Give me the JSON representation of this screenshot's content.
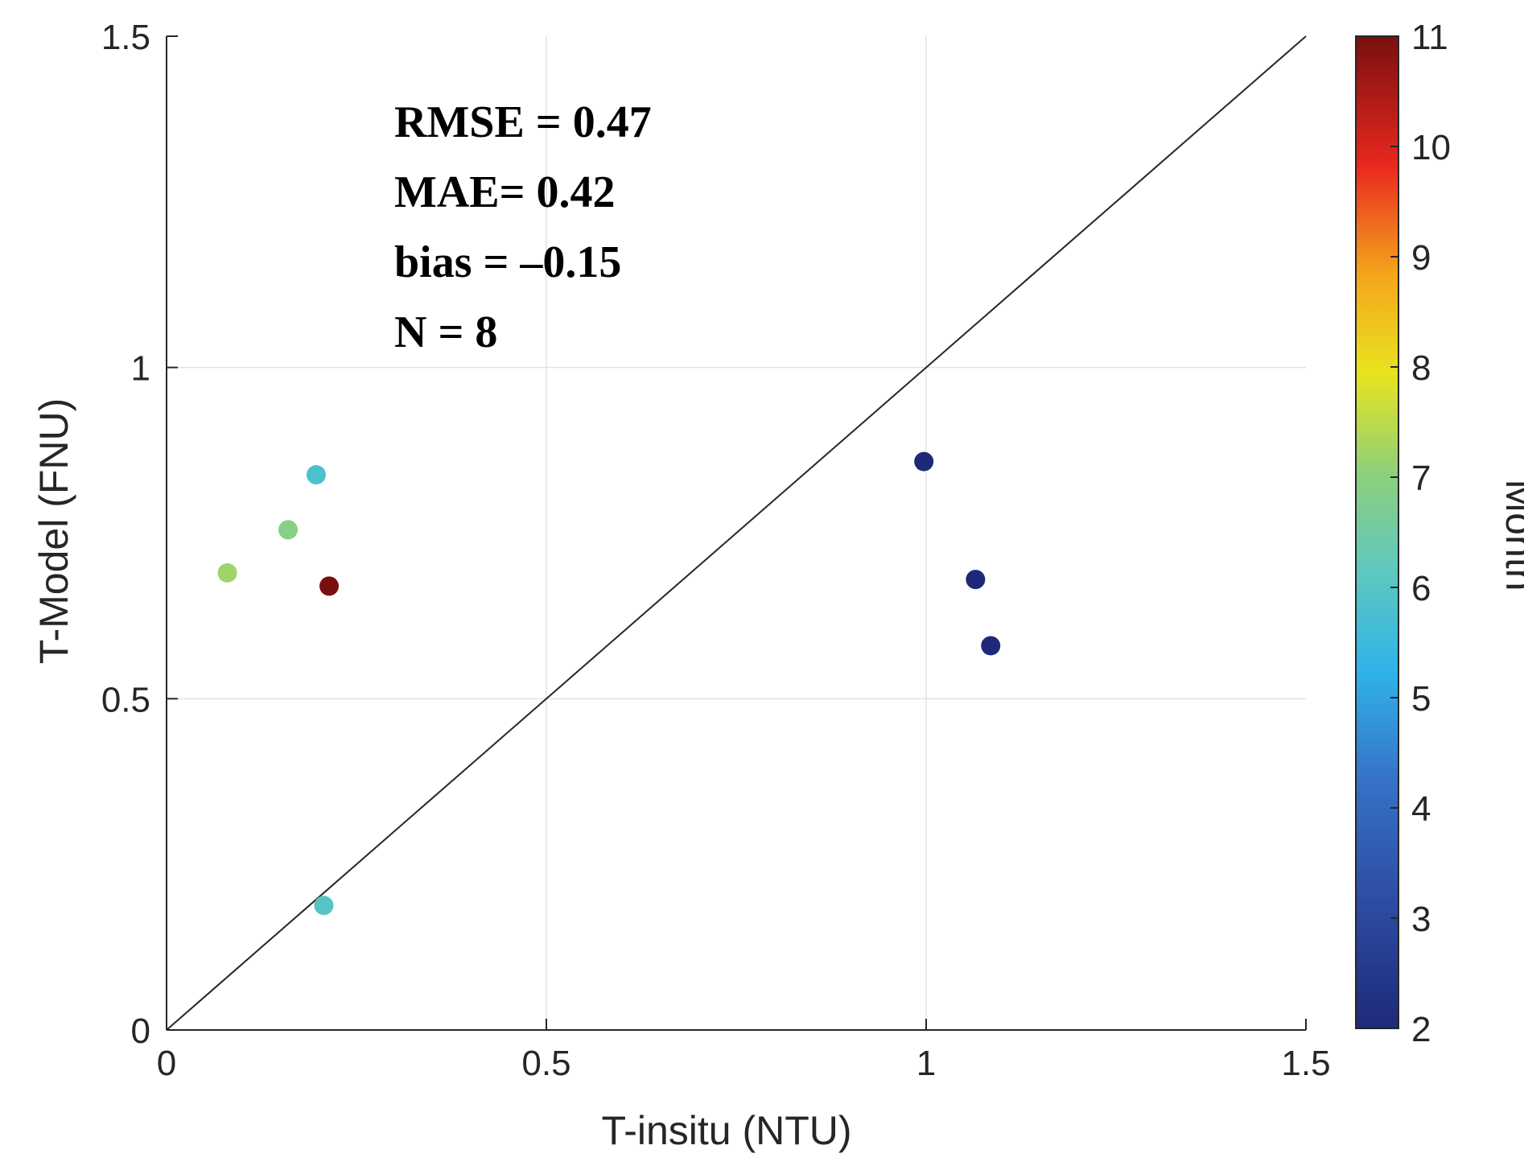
{
  "chart_data": {
    "type": "scatter",
    "xlabel": "T-insitu (NTU)",
    "ylabel": "T-Model (FNU)",
    "xlim": [
      0,
      1.5
    ],
    "ylim": [
      0,
      1.5
    ],
    "xticks": [
      0,
      0.5,
      1,
      1.5
    ],
    "yticks": [
      0,
      0.5,
      1,
      1.5
    ],
    "xtick_labels": [
      "0",
      "0.5",
      "1",
      "1.5"
    ],
    "ytick_labels": [
      "0",
      "0.5",
      "1",
      "1.5"
    ],
    "grid": true,
    "reference_line": "1:1",
    "annotations": [
      "RMSE = 0.47",
      "MAE= 0.42",
      "bias = –0.15",
      "N = 8"
    ],
    "colorbar": {
      "label": "Month",
      "range": [
        2,
        11
      ],
      "ticks": [
        2,
        3,
        4,
        5,
        6,
        7,
        8,
        9,
        10,
        11
      ],
      "tick_labels": [
        "2",
        "3",
        "4",
        "5",
        "6",
        "7",
        "8",
        "9",
        "10",
        "11"
      ],
      "colormap": "jet"
    },
    "points": [
      {
        "x": 0.08,
        "y": 0.69,
        "month": 7.2
      },
      {
        "x": 0.16,
        "y": 0.755,
        "month": 6.9
      },
      {
        "x": 0.197,
        "y": 0.838,
        "month": 5.8
      },
      {
        "x": 0.214,
        "y": 0.67,
        "month": 11
      },
      {
        "x": 0.207,
        "y": 0.188,
        "month": 6.0
      },
      {
        "x": 0.997,
        "y": 0.858,
        "month": 2
      },
      {
        "x": 1.065,
        "y": 0.68,
        "month": 2
      },
      {
        "x": 1.085,
        "y": 0.58,
        "month": 2
      }
    ]
  }
}
